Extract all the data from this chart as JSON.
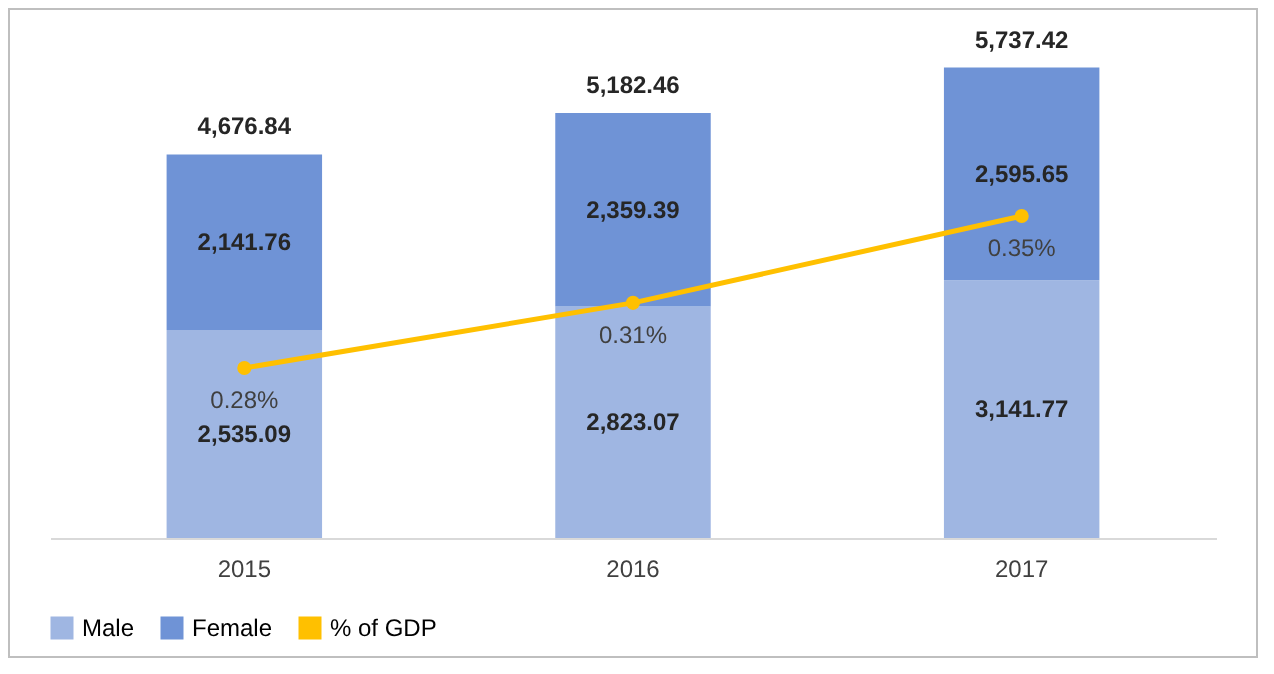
{
  "chart_data": {
    "type": "bar",
    "stacked": true,
    "categories": [
      "2015",
      "2016",
      "2017"
    ],
    "series": [
      {
        "name": "Male",
        "color": "#9fb6e2",
        "values": [
          2535.09,
          2823.07,
          3141.77
        ],
        "value_labels": [
          "2,535.09",
          "2,823.07",
          "3,141.77"
        ]
      },
      {
        "name": "Female",
        "color": "#6f93d6",
        "values": [
          2141.76,
          2359.39,
          2595.65
        ],
        "value_labels": [
          "2,141.76",
          "2,359.39",
          "2,595.65"
        ]
      },
      {
        "name": "% of GDP",
        "type": "line",
        "axis": "y2",
        "color": "#ffc000",
        "values": [
          0.28,
          0.31,
          0.35
        ],
        "value_labels": [
          "0.28%",
          "0.31%",
          "0.35%"
        ]
      }
    ],
    "totals": [
      "4,676.84",
      "5,182.46",
      "5,737.42"
    ],
    "marker": "circle",
    "legend": "bottom",
    "grid": false
  }
}
